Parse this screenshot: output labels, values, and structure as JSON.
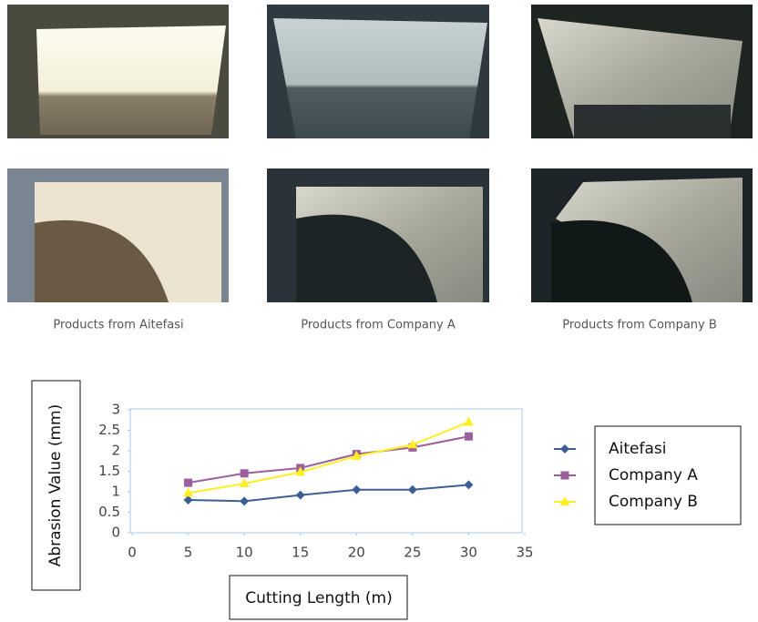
{
  "captions": [
    "Products from Aitefasi",
    "Products from Company A",
    "Products from Company B"
  ],
  "chart_data": {
    "type": "line",
    "x_label": "Cutting Length (m)",
    "y_label": "Abrasion Value (mm)",
    "x": [
      5,
      10,
      15,
      20,
      25,
      30
    ],
    "series": [
      {
        "name": "Aitefasi",
        "color": "#3c5f96",
        "marker": "diamond",
        "values": [
          0.8,
          0.77,
          0.92,
          1.05,
          1.05,
          1.17
        ]
      },
      {
        "name": "Company A",
        "color": "#9b5f9b",
        "marker": "square",
        "values": [
          1.22,
          1.45,
          1.58,
          1.92,
          2.08,
          2.35
        ]
      },
      {
        "name": "Company B",
        "color": "#ffee22",
        "marker": "triangle",
        "values": [
          0.97,
          1.2,
          1.48,
          1.87,
          2.15,
          2.7
        ]
      }
    ],
    "xlim": [
      0,
      35
    ],
    "xticks": [
      0,
      5,
      10,
      15,
      20,
      25,
      30,
      35
    ],
    "ylim": [
      0,
      3
    ],
    "yticks": [
      0,
      0.5,
      1,
      1.5,
      2,
      2.5,
      3
    ],
    "grid": false
  }
}
